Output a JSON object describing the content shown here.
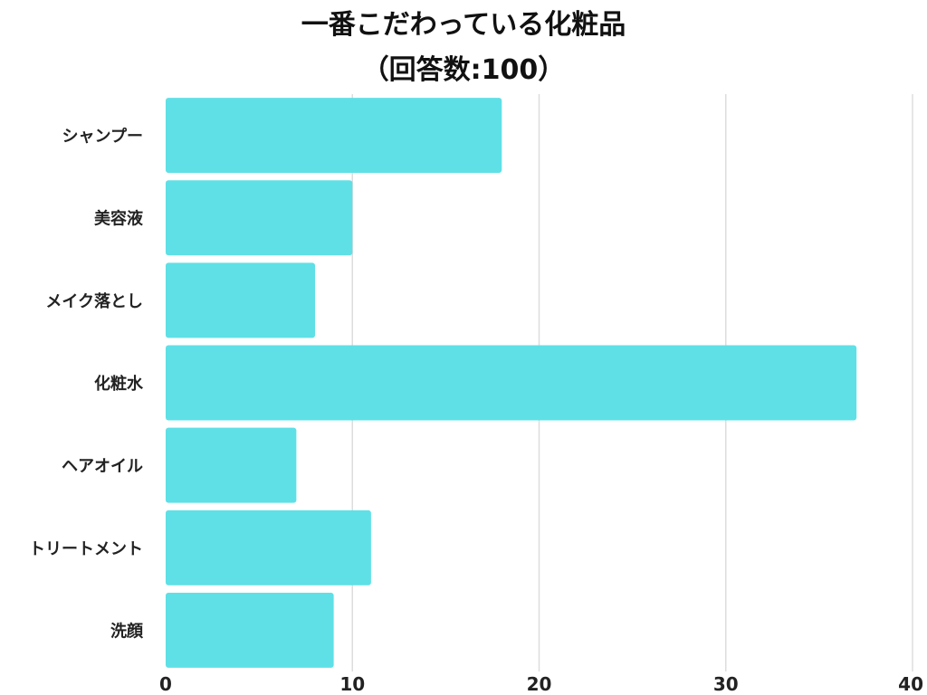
{
  "chart_data": {
    "type": "bar",
    "orientation": "horizontal",
    "title_lines": [
      "一番こだわっている化粧品",
      "（回答数:100）"
    ],
    "categories": [
      "シャンプー",
      "美容液",
      "メイク落とし",
      "化粧水",
      "ヘアオイル",
      "トリートメント",
      "洗顔"
    ],
    "values": [
      18,
      10,
      8,
      37,
      7,
      11,
      9
    ],
    "xlim": [
      0,
      40
    ],
    "xticks": [
      0,
      10,
      20,
      30,
      40
    ],
    "grid": true,
    "bar_color": "#5ee0e6",
    "grid_color": "#dddddd"
  }
}
